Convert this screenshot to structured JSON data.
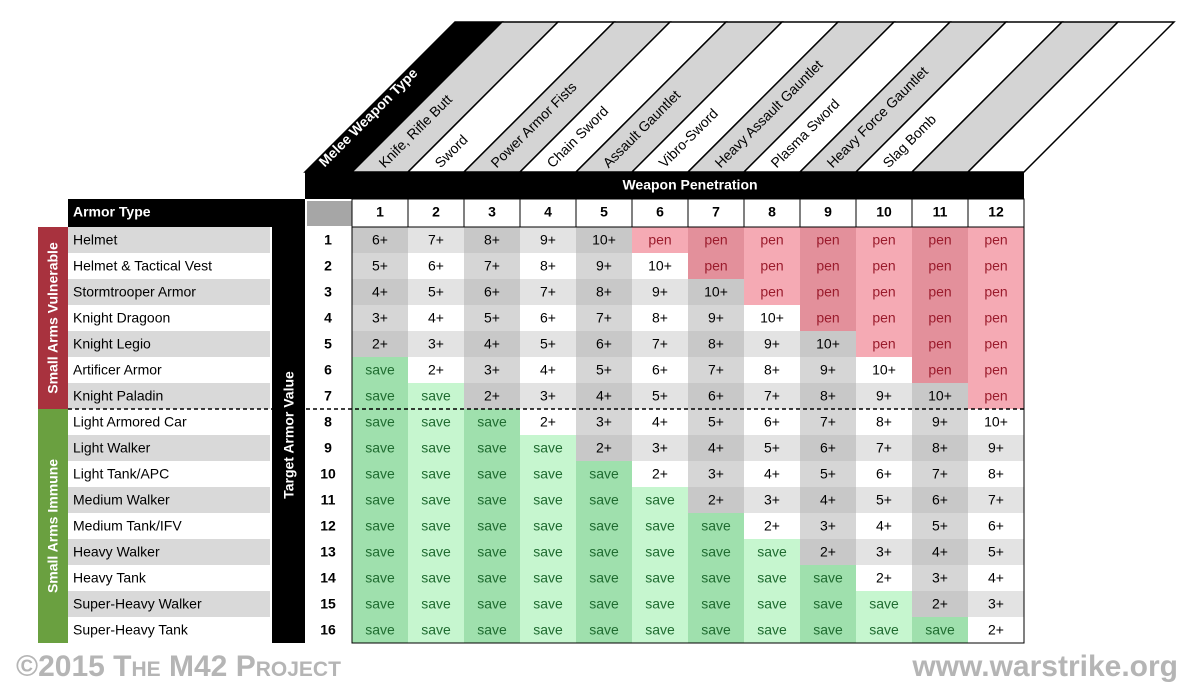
{
  "header": {
    "melee_label": "Melee Weapon Type",
    "weapons": [
      "Knife, Rifle Butt",
      "Sword",
      "Power Armor Fists",
      "Chain Sword",
      "Assault Gauntlet",
      "Vibro-Sword",
      "Heavy Assault Gauntlet",
      "Plasma Sword",
      "Heavy Force Gauntlet",
      "Slag Bomb"
    ],
    "penetration_label": "Weapon Penetration"
  },
  "table": {
    "armor_type_label": "Armor Type",
    "target_label": "Target Armor Value",
    "groups": [
      "Small Arms Vulnerable",
      "Small Arms Immune"
    ],
    "group_colors": [
      "#a8323e",
      "#6aa040"
    ],
    "cell_colors": {
      "save": [
        "#9fe0ad",
        "#c6f6cf"
      ],
      "pen": [
        "#e3909b",
        "#f5aab4"
      ]
    },
    "penetration": [
      1,
      2,
      3,
      4,
      5,
      6,
      7,
      8,
      9,
      10,
      11,
      12
    ],
    "rows": [
      {
        "armor": "Helmet",
        "value": 1,
        "cells": [
          "6+",
          "7+",
          "8+",
          "9+",
          "10+",
          "pen",
          "pen",
          "pen",
          "pen",
          "pen",
          "pen",
          "pen"
        ]
      },
      {
        "armor": "Helmet & Tactical Vest",
        "value": 2,
        "cells": [
          "5+",
          "6+",
          "7+",
          "8+",
          "9+",
          "10+",
          "pen",
          "pen",
          "pen",
          "pen",
          "pen",
          "pen"
        ]
      },
      {
        "armor": "Stormtrooper Armor",
        "value": 3,
        "cells": [
          "4+",
          "5+",
          "6+",
          "7+",
          "8+",
          "9+",
          "10+",
          "pen",
          "pen",
          "pen",
          "pen",
          "pen"
        ]
      },
      {
        "armor": "Knight Dragoon",
        "value": 4,
        "cells": [
          "3+",
          "4+",
          "5+",
          "6+",
          "7+",
          "8+",
          "9+",
          "10+",
          "pen",
          "pen",
          "pen",
          "pen"
        ]
      },
      {
        "armor": "Knight Legio",
        "value": 5,
        "cells": [
          "2+",
          "3+",
          "4+",
          "5+",
          "6+",
          "7+",
          "8+",
          "9+",
          "10+",
          "pen",
          "pen",
          "pen"
        ]
      },
      {
        "armor": "Artificer Armor",
        "value": 6,
        "cells": [
          "save",
          "2+",
          "3+",
          "4+",
          "5+",
          "6+",
          "7+",
          "8+",
          "9+",
          "10+",
          "pen",
          "pen"
        ]
      },
      {
        "armor": "Knight Paladin",
        "value": 7,
        "cells": [
          "save",
          "save",
          "2+",
          "3+",
          "4+",
          "5+",
          "6+",
          "7+",
          "8+",
          "9+",
          "10+",
          "pen"
        ]
      },
      {
        "armor": "Light Armored Car",
        "value": 8,
        "cells": [
          "save",
          "save",
          "save",
          "2+",
          "3+",
          "4+",
          "5+",
          "6+",
          "7+",
          "8+",
          "9+",
          "10+"
        ]
      },
      {
        "armor": "Light Walker",
        "value": 9,
        "cells": [
          "save",
          "save",
          "save",
          "save",
          "2+",
          "3+",
          "4+",
          "5+",
          "6+",
          "7+",
          "8+",
          "9+"
        ]
      },
      {
        "armor": "Light Tank/APC",
        "value": 10,
        "cells": [
          "save",
          "save",
          "save",
          "save",
          "save",
          "2+",
          "3+",
          "4+",
          "5+",
          "6+",
          "7+",
          "8+"
        ]
      },
      {
        "armor": "Medium Walker",
        "value": 11,
        "cells": [
          "save",
          "save",
          "save",
          "save",
          "save",
          "save",
          "2+",
          "3+",
          "4+",
          "5+",
          "6+",
          "7+"
        ]
      },
      {
        "armor": "Medium Tank/IFV",
        "value": 12,
        "cells": [
          "save",
          "save",
          "save",
          "save",
          "save",
          "save",
          "save",
          "2+",
          "3+",
          "4+",
          "5+",
          "6+"
        ]
      },
      {
        "armor": "Heavy Walker",
        "value": 13,
        "cells": [
          "save",
          "save",
          "save",
          "save",
          "save",
          "save",
          "save",
          "save",
          "2+",
          "3+",
          "4+",
          "5+"
        ]
      },
      {
        "armor": "Heavy Tank",
        "value": 14,
        "cells": [
          "save",
          "save",
          "save",
          "save",
          "save",
          "save",
          "save",
          "save",
          "save",
          "2+",
          "3+",
          "4+"
        ]
      },
      {
        "armor": "Super-Heavy Walker",
        "value": 15,
        "cells": [
          "save",
          "save",
          "save",
          "save",
          "save",
          "save",
          "save",
          "save",
          "save",
          "save",
          "2+",
          "3+"
        ]
      },
      {
        "armor": "Super-Heavy Tank",
        "value": 16,
        "cells": [
          "save",
          "save",
          "save",
          "save",
          "save",
          "save",
          "save",
          "save",
          "save",
          "save",
          "save",
          "2+"
        ]
      }
    ]
  },
  "footer": {
    "copyright": "©2015 The M42 Project",
    "site": "www.warstrike.org"
  }
}
